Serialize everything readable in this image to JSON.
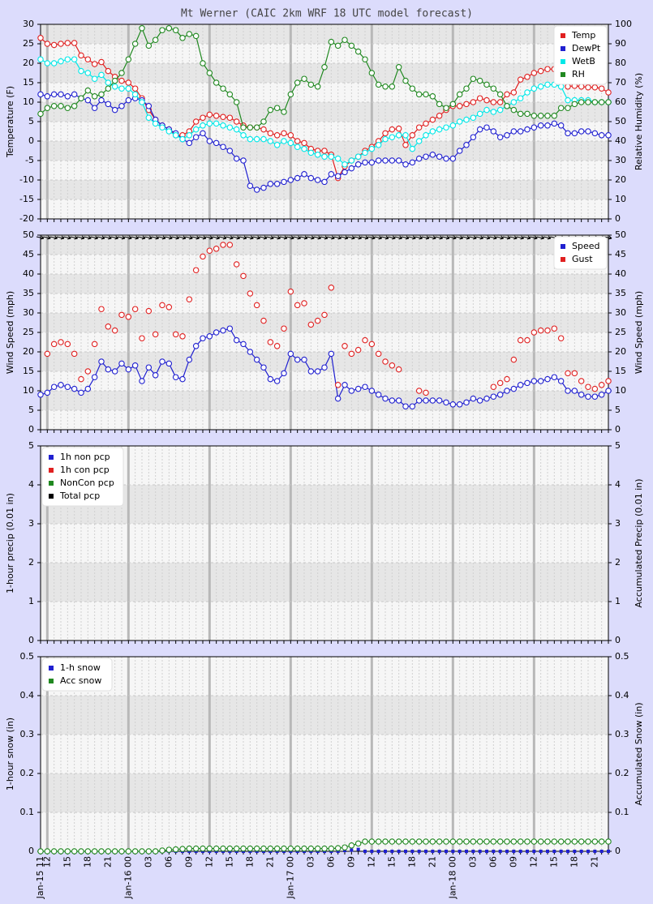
{
  "chart_data": [
    {
      "type": "line",
      "title": "Mt Werner (CAIC 2km WRF 18 UTC model forecast)",
      "ylabel": "Temperature (F)",
      "y2label": "Relative Humidity (%)",
      "ylim": [
        -20,
        30
      ],
      "yticks": [
        -20,
        -15,
        -10,
        -5,
        0,
        5,
        10,
        15,
        20,
        25,
        30
      ],
      "y2lim": [
        0,
        100
      ],
      "y2ticks": [
        0,
        10,
        20,
        30,
        40,
        50,
        60,
        70,
        80,
        90,
        100
      ],
      "legend": "upper right",
      "grid": true,
      "series": [
        {
          "name": "Temp",
          "color": "#e02020",
          "values": [
            26.5,
            25,
            24.7,
            25,
            25.2,
            25.2,
            22,
            21,
            19.8,
            20.3,
            18,
            16.5,
            15.5,
            15,
            13.5,
            11,
            8,
            5.5,
            4,
            3,
            1.5,
            1.5,
            2.5,
            5,
            6,
            6.8,
            6.5,
            6.2,
            6,
            5,
            4,
            3.5,
            3.5,
            3,
            2,
            1.5,
            2,
            1.5,
            0,
            -0.5,
            -2,
            -2.5,
            -2.5,
            -3.5,
            -9.5,
            -6.5,
            -5,
            -4,
            -2.5,
            -1.5,
            0,
            2,
            3,
            3.2,
            -1,
            1.5,
            3.5,
            4.5,
            5.5,
            6.5,
            8,
            9,
            9,
            9.5,
            10,
            11,
            10.5,
            10,
            10,
            12,
            12.5,
            15.8,
            16.5,
            17.5,
            18,
            18.5,
            18.5,
            17.5,
            14,
            14.2,
            14,
            13.8,
            13.8,
            13.5,
            12.5
          ]
        },
        {
          "name": "DewPt",
          "color": "#2020d0",
          "values": [
            12,
            11.5,
            12,
            12,
            11.5,
            12,
            11,
            10.5,
            8.5,
            10.5,
            9.5,
            8,
            9,
            10.5,
            11,
            10.5,
            9,
            5.5,
            4,
            3,
            2,
            0.5,
            -0.5,
            1,
            2,
            0,
            -0.5,
            -1.5,
            -2.5,
            -4.5,
            -5,
            -11.5,
            -12.5,
            -12,
            -11,
            -11,
            -10.5,
            -10,
            -9.5,
            -8.5,
            -9.5,
            -10,
            -10.5,
            -8.5,
            -9,
            -8,
            -7,
            -6,
            -5.5,
            -5.5,
            -5,
            -5,
            -5,
            -5,
            -6,
            -5.5,
            -4.5,
            -4,
            -3.5,
            -4,
            -4.5,
            -4.5,
            -2.5,
            -1,
            1,
            3,
            3.5,
            2.5,
            1,
            1.5,
            2.5,
            2.5,
            3,
            3.5,
            4,
            4,
            4.5,
            4,
            2,
            2,
            2.5,
            2.5,
            2,
            1.5,
            1.5
          ]
        },
        {
          "name": "WetB",
          "color": "#00e8e8",
          "values": [
            21,
            20,
            20,
            20.5,
            21,
            21,
            18,
            17.5,
            16,
            17,
            15,
            14,
            13.5,
            13.5,
            12,
            10,
            6,
            4.5,
            3.5,
            2.5,
            1.5,
            0.5,
            1.5,
            3,
            4,
            4.5,
            4.5,
            4,
            3.5,
            3,
            1.5,
            0.5,
            0.5,
            0.5,
            0,
            -1,
            0,
            -0.5,
            -1.5,
            -2,
            -3,
            -3.5,
            -4,
            -4,
            -4.5,
            -6,
            -5,
            -4,
            -3,
            -2,
            -1,
            0.5,
            1,
            1.5,
            1.5,
            -2,
            0,
            1.5,
            2.5,
            3,
            3.5,
            4,
            5,
            5.5,
            6,
            7,
            8,
            7.5,
            8,
            9,
            10,
            11,
            12.5,
            13.5,
            14,
            14.5,
            14.5,
            14,
            10.5,
            10.5,
            10.5,
            10.5,
            10,
            10,
            10
          ]
        },
        {
          "name": "RH",
          "color": "#208820",
          "axis": "y2",
          "values": [
            54,
            57,
            58,
            58,
            57,
            58,
            62,
            66,
            63,
            64,
            67,
            71,
            75,
            82,
            90,
            98,
            89,
            92,
            97,
            98,
            97,
            93,
            95,
            94,
            80,
            75,
            70,
            67,
            64,
            60,
            47,
            47,
            47,
            50,
            56,
            57,
            55,
            64,
            70,
            72,
            69,
            68,
            78,
            91,
            89,
            92,
            89,
            86,
            82,
            75,
            69,
            68,
            68,
            78,
            71,
            67,
            64,
            64,
            63,
            59,
            57,
            59,
            64,
            67,
            72,
            71,
            69,
            67,
            64,
            58,
            56,
            54,
            54,
            53,
            53,
            53,
            53,
            57,
            57,
            59,
            60,
            60,
            60,
            60,
            60
          ]
        }
      ]
    },
    {
      "type": "line",
      "ylabel": "Wind Speed (mph)",
      "y2label": "Wind Speed (mph)",
      "ylim": [
        0,
        50
      ],
      "yticks": [
        0,
        5,
        10,
        15,
        20,
        25,
        30,
        35,
        40,
        45,
        50
      ],
      "y2lim": [
        0,
        50
      ],
      "y2ticks": [
        0,
        5,
        10,
        15,
        20,
        25,
        30,
        35,
        40,
        45,
        50
      ],
      "legend": "upper right",
      "grid": true,
      "series": [
        {
          "name": "Speed",
          "color": "#2020d0",
          "values": [
            9,
            9.5,
            11,
            11.5,
            11,
            10.5,
            9.5,
            10.5,
            13.5,
            17.5,
            15.5,
            15,
            17,
            15.5,
            16.5,
            12.5,
            16,
            14,
            17.5,
            17,
            13.5,
            13,
            18,
            21.5,
            23.5,
            24,
            25,
            25.5,
            26,
            23,
            22,
            20,
            18,
            16,
            13,
            12.5,
            14.5,
            19.5,
            18,
            18,
            15,
            15,
            16,
            19.5,
            8,
            11.5,
            10,
            10.5,
            11,
            10,
            9,
            8,
            7.5,
            7.5,
            6,
            6,
            7.5,
            7.5,
            7.5,
            7.5,
            7,
            6.5,
            6.5,
            7,
            8,
            7.5,
            8,
            8.5,
            9,
            10,
            10.5,
            11.5,
            12,
            12.5,
            12.5,
            13,
            13.5,
            12.5,
            10,
            10,
            9,
            8.5,
            8.5,
            9,
            10
          ]
        },
        {
          "name": "Gust",
          "color": "#e02020",
          "line": false,
          "values": [
            null,
            19.5,
            22,
            22.5,
            22,
            19.5,
            13,
            15,
            22,
            31,
            26.5,
            25.5,
            29.5,
            29,
            31,
            23.5,
            30.5,
            24.5,
            32,
            31.5,
            24.5,
            24,
            33.5,
            41,
            44.5,
            46,
            46.5,
            47.5,
            47.5,
            42.5,
            39.5,
            35,
            32,
            28,
            22.5,
            21.5,
            26,
            35.5,
            32,
            32.5,
            27,
            28,
            29.5,
            36.5,
            11.5,
            21.5,
            19.5,
            20.5,
            23,
            22,
            19.5,
            17.5,
            16.5,
            15.5,
            null,
            null,
            10,
            9.5,
            null,
            null,
            null,
            null,
            null,
            null,
            null,
            null,
            null,
            11,
            12,
            13,
            18,
            23,
            23,
            25,
            25.5,
            25.5,
            26,
            23.5,
            14.5,
            14.5,
            12.5,
            11,
            10.5,
            11.5,
            12.5
          ]
        }
      ]
    },
    {
      "type": "line",
      "ylabel": "1-hour precip (0.01 in)",
      "y2label": "Accumulated Precip (0.01 in)",
      "ylim": [
        0,
        5
      ],
      "yticks": [
        0,
        1,
        2,
        3,
        4,
        5
      ],
      "y2lim": [
        0,
        5
      ],
      "y2ticks": [
        0,
        1,
        2,
        3,
        4,
        5
      ],
      "legend": "upper left",
      "grid": true,
      "series": [
        {
          "name": "1h non pcp",
          "color": "#2020d0"
        },
        {
          "name": "1h con pcp",
          "color": "#e02020"
        },
        {
          "name": "NonCon pcp",
          "color": "#208820"
        },
        {
          "name": "Total pcp",
          "color": "#000000"
        }
      ]
    },
    {
      "type": "line",
      "ylabel": "1-hour snow (in)",
      "y2label": "Accumulated Snow (in)",
      "ylim": [
        0,
        0.5
      ],
      "yticks": [
        0,
        0.1,
        0.2,
        0.3,
        0.4,
        0.5
      ],
      "y2lim": [
        0,
        0.5
      ],
      "y2ticks": [
        0,
        0.1,
        0.2,
        0.3,
        0.4,
        0.5
      ],
      "legend": "upper left",
      "grid": true,
      "categories": [
        "Jan-15 11",
        "12",
        null,
        null,
        "15",
        null,
        null,
        "18",
        null,
        null,
        "21",
        null,
        null,
        "Jan-16 00",
        null,
        null,
        "03",
        null,
        null,
        "06",
        null,
        null,
        "09",
        null,
        null,
        "12",
        null,
        null,
        "15",
        null,
        null,
        "18",
        null,
        null,
        "21",
        null,
        null,
        "Jan-17 00",
        null,
        null,
        "03",
        null,
        null,
        "06",
        null,
        null,
        "09",
        null,
        null,
        "12",
        null,
        null,
        "15",
        null,
        null,
        "18",
        null,
        null,
        "21",
        null,
        null,
        "Jan-18 00",
        null,
        null,
        "03",
        null,
        null,
        "06",
        null,
        null,
        "09",
        null,
        null,
        "12",
        null,
        null,
        "15",
        null,
        null,
        "18",
        null,
        null,
        "21",
        null,
        null
      ],
      "series": [
        {
          "name": "1-h snow",
          "color": "#2020d0",
          "line": false,
          "marker": "square",
          "values": [
            0,
            0,
            0,
            0,
            0,
            0,
            0,
            0,
            0,
            0,
            0,
            0,
            0,
            0,
            0,
            0,
            0,
            0,
            0,
            0,
            0,
            0,
            0,
            0,
            0,
            0,
            0,
            0,
            0,
            0,
            0,
            0,
            0,
            0,
            0,
            0,
            0,
            0,
            0,
            0,
            0,
            0,
            0,
            0,
            0,
            0.002,
            0.003,
            0.005,
            0,
            0,
            0,
            0,
            0,
            0,
            0,
            0,
            0,
            0,
            0,
            0,
            0,
            0,
            0,
            0,
            0,
            0,
            0,
            0,
            0,
            0,
            0,
            0,
            0,
            0,
            0,
            0,
            0,
            0,
            0,
            0,
            0,
            0,
            0,
            0,
            0
          ]
        },
        {
          "name": "Acc snow",
          "color": "#208820",
          "axis": "y2",
          "values": [
            0,
            0,
            0,
            0,
            0,
            0,
            0,
            0,
            0,
            0,
            0,
            0,
            0,
            0,
            0,
            0,
            0,
            0,
            0.002,
            0.004,
            0.005,
            0.006,
            0.007,
            0.007,
            0.007,
            0.007,
            0.007,
            0.007,
            0.007,
            0.007,
            0.007,
            0.007,
            0.007,
            0.007,
            0.007,
            0.007,
            0.007,
            0.007,
            0.007,
            0.007,
            0.007,
            0.007,
            0.007,
            0.007,
            0.008,
            0.01,
            0.015,
            0.02,
            0.025,
            0.025,
            0.025,
            0.025,
            0.025,
            0.025,
            0.025,
            0.025,
            0.025,
            0.025,
            0.025,
            0.025,
            0.025,
            0.025,
            0.025,
            0.025,
            0.025,
            0.025,
            0.025,
            0.025,
            0.025,
            0.025,
            0.025,
            0.025,
            0.025,
            0.025,
            0.025,
            0.025,
            0.025,
            0.025,
            0.025,
            0.025,
            0.025,
            0.025,
            0.025,
            0.025,
            0.025
          ]
        }
      ]
    }
  ]
}
